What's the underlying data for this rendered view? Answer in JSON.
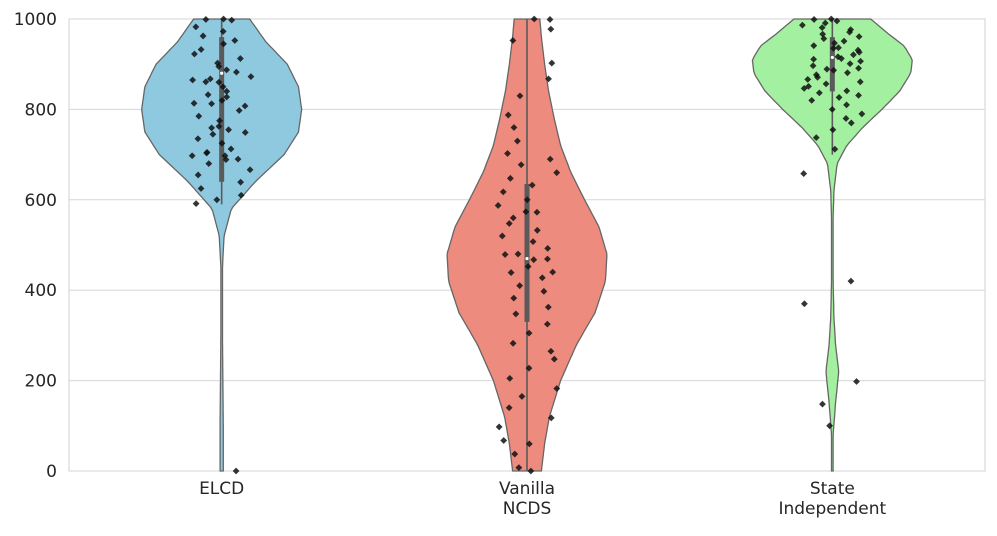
{
  "chart_data": {
    "type": "violin",
    "title": "",
    "xlabel": "",
    "ylabel": "",
    "ylim": [
      0,
      1000
    ],
    "yticks": [
      "0",
      "200",
      "400",
      "600",
      "800",
      "1000"
    ],
    "grid": true,
    "legend": "none",
    "categories": [
      {
        "label_lines": [
          "ELCD"
        ],
        "color": "#8fc9e0",
        "box": {
          "q1": 640,
          "median": 880,
          "q3": 960,
          "whisker_low": 590,
          "whisker_high": 1000
        },
        "density": [
          [
            0,
            0.02
          ],
          [
            100,
            0.02
          ],
          [
            300,
            0.01
          ],
          [
            450,
            0.01
          ],
          [
            520,
            0.03
          ],
          [
            580,
            0.12
          ],
          [
            640,
            0.42
          ],
          [
            700,
            0.78
          ],
          [
            750,
            0.96
          ],
          [
            800,
            1.0
          ],
          [
            850,
            0.96
          ],
          [
            900,
            0.82
          ],
          [
            950,
            0.55
          ],
          [
            1000,
            0.35
          ]
        ],
        "points": [
          [
            0,
            0
          ],
          [
            593,
            590
          ],
          [
            600,
            600
          ],
          [
            610,
            610
          ],
          [
            625,
            625
          ],
          [
            638,
            640
          ],
          [
            655,
            655
          ],
          [
            665,
            668
          ],
          [
            680,
            680
          ],
          [
            690,
            690
          ],
          [
            695,
            700
          ],
          [
            700,
            710
          ],
          [
            705,
            720
          ],
          [
            715,
            735
          ],
          [
            725,
            745
          ],
          [
            740,
            750
          ],
          [
            750,
            760
          ],
          [
            755,
            770
          ],
          [
            770,
            780
          ],
          [
            780,
            790
          ],
          [
            795,
            800
          ],
          [
            805,
            810
          ],
          [
            810,
            815
          ],
          [
            820,
            820
          ],
          [
            830,
            825
          ],
          [
            835,
            830
          ],
          [
            840,
            840
          ],
          [
            850,
            850
          ],
          [
            860,
            860
          ],
          [
            870,
            865
          ],
          [
            875,
            870
          ],
          [
            885,
            880
          ],
          [
            890,
            885
          ],
          [
            895,
            895
          ],
          [
            905,
            900
          ],
          [
            915,
            910
          ],
          [
            925,
            920
          ],
          [
            935,
            930
          ],
          [
            950,
            940
          ],
          [
            960,
            945
          ],
          [
            970,
            955
          ],
          [
            980,
            965
          ],
          [
            990,
            975
          ],
          [
            1000,
            1000
          ],
          [
            1000,
            998
          ],
          [
            1000,
            995
          ],
          [
            865,
            865
          ],
          [
            860,
            862
          ],
          [
            815,
            812
          ],
          [
            705,
            702
          ],
          [
            700,
            695
          ],
          [
            690,
            688
          ],
          [
            750,
            748
          ],
          [
            760,
            758
          ]
        ]
      },
      {
        "label_lines": [
          "Vanilla",
          "NCDS"
        ],
        "color": "#ec8b7e",
        "box": {
          "q1": 330,
          "median": 470,
          "q3": 635,
          "whisker_low": 0,
          "whisker_high": 1000
        },
        "density": [
          [
            0,
            0.18
          ],
          [
            60,
            0.22
          ],
          [
            120,
            0.28
          ],
          [
            200,
            0.42
          ],
          [
            280,
            0.62
          ],
          [
            350,
            0.85
          ],
          [
            420,
            0.98
          ],
          [
            480,
            1.0
          ],
          [
            540,
            0.9
          ],
          [
            600,
            0.72
          ],
          [
            660,
            0.55
          ],
          [
            720,
            0.42
          ],
          [
            780,
            0.34
          ],
          [
            840,
            0.27
          ],
          [
            900,
            0.22
          ],
          [
            960,
            0.18
          ],
          [
            1000,
            0.16
          ]
        ],
        "points": [
          [
            0,
            0
          ],
          [
            5,
            10
          ],
          [
            35,
            40
          ],
          [
            60,
            60
          ],
          [
            70,
            65
          ],
          [
            95,
            100
          ],
          [
            115,
            120
          ],
          [
            140,
            140
          ],
          [
            160,
            170
          ],
          [
            180,
            185
          ],
          [
            200,
            210
          ],
          [
            225,
            230
          ],
          [
            245,
            250
          ],
          [
            260,
            270
          ],
          [
            280,
            285
          ],
          [
            300,
            310
          ],
          [
            320,
            330
          ],
          [
            345,
            350
          ],
          [
            360,
            365
          ],
          [
            380,
            385
          ],
          [
            395,
            400
          ],
          [
            410,
            410
          ],
          [
            425,
            430
          ],
          [
            440,
            440
          ],
          [
            455,
            450
          ],
          [
            465,
            470
          ],
          [
            480,
            480
          ],
          [
            490,
            495
          ],
          [
            505,
            510
          ],
          [
            520,
            520
          ],
          [
            530,
            535
          ],
          [
            545,
            550
          ],
          [
            560,
            560
          ],
          [
            575,
            570
          ],
          [
            585,
            590
          ],
          [
            600,
            600
          ],
          [
            615,
            620
          ],
          [
            630,
            635
          ],
          [
            645,
            650
          ],
          [
            660,
            660
          ],
          [
            675,
            680
          ],
          [
            690,
            690
          ],
          [
            700,
            705
          ],
          [
            730,
            730
          ],
          [
            760,
            760
          ],
          [
            790,
            785
          ],
          [
            820,
            840
          ],
          [
            865,
            870
          ],
          [
            900,
            905
          ],
          [
            950,
            955
          ],
          [
            975,
            980
          ],
          [
            1000,
            1000
          ],
          [
            1000,
            998
          ],
          [
            440,
            438
          ],
          [
            470,
            468
          ],
          [
            480,
            478
          ],
          [
            575,
            572
          ]
        ]
      },
      {
        "label_lines": [
          "State",
          "Independent"
        ],
        "color": "#a4f0a1",
        "box": {
          "q1": 840,
          "median": 915,
          "q3": 960,
          "whisker_low": 700,
          "whisker_high": 1000
        },
        "density": [
          [
            0,
            0.01
          ],
          [
            80,
            0.01
          ],
          [
            150,
            0.04
          ],
          [
            220,
            0.08
          ],
          [
            280,
            0.04
          ],
          [
            340,
            0.02
          ],
          [
            420,
            0.01
          ],
          [
            500,
            0.01
          ],
          [
            560,
            0.01
          ],
          [
            620,
            0.02
          ],
          [
            680,
            0.06
          ],
          [
            720,
            0.18
          ],
          [
            760,
            0.38
          ],
          [
            800,
            0.62
          ],
          [
            840,
            0.84
          ],
          [
            880,
            0.98
          ],
          [
            910,
            1.0
          ],
          [
            940,
            0.9
          ],
          [
            970,
            0.68
          ],
          [
            1000,
            0.48
          ]
        ],
        "points": [
          [
            100,
            100
          ],
          [
            148,
            148
          ],
          [
            198,
            198
          ],
          [
            370,
            370
          ],
          [
            420,
            420
          ],
          [
            658,
            658
          ],
          [
            712,
            712
          ],
          [
            735,
            740
          ],
          [
            755,
            755
          ],
          [
            770,
            770
          ],
          [
            780,
            780
          ],
          [
            790,
            790
          ],
          [
            800,
            800
          ],
          [
            810,
            810
          ],
          [
            820,
            820
          ],
          [
            825,
            828
          ],
          [
            830,
            832
          ],
          [
            835,
            838
          ],
          [
            840,
            842
          ],
          [
            845,
            848
          ],
          [
            850,
            852
          ],
          [
            855,
            858
          ],
          [
            860,
            862
          ],
          [
            865,
            868
          ],
          [
            870,
            872
          ],
          [
            875,
            878
          ],
          [
            880,
            882
          ],
          [
            885,
            888
          ],
          [
            890,
            892
          ],
          [
            895,
            898
          ],
          [
            900,
            902
          ],
          [
            905,
            908
          ],
          [
            910,
            912
          ],
          [
            915,
            918
          ],
          [
            920,
            922
          ],
          [
            925,
            928
          ],
          [
            930,
            932
          ],
          [
            935,
            938
          ],
          [
            940,
            942
          ],
          [
            945,
            948
          ],
          [
            950,
            952
          ],
          [
            955,
            958
          ],
          [
            960,
            962
          ],
          [
            965,
            968
          ],
          [
            970,
            972
          ],
          [
            975,
            978
          ],
          [
            980,
            982
          ],
          [
            985,
            988
          ],
          [
            990,
            992
          ],
          [
            995,
            996
          ],
          [
            1000,
            1000
          ],
          [
            1000,
            998
          ],
          [
            888,
            890
          ],
          [
            910,
            915
          ],
          [
            935,
            935
          ]
        ]
      }
    ]
  }
}
